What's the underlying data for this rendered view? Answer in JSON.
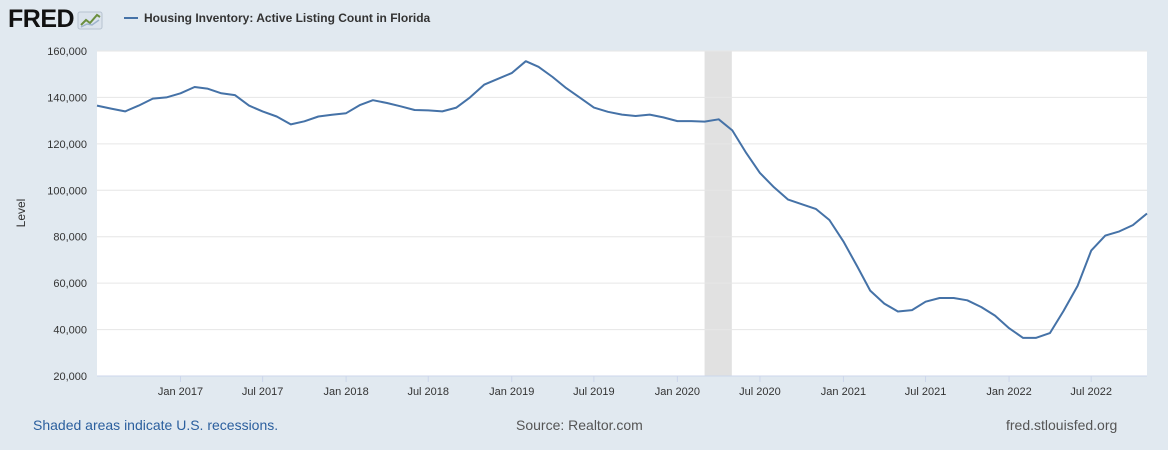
{
  "header": {
    "logo_text": "FRED",
    "logo_icon": "chart-trend-icon"
  },
  "footer": {
    "recession_note": "Shaded areas indicate U.S. recessions.",
    "source": "Source: Realtor.com",
    "site": "fred.stlouisfed.org"
  },
  "colors": {
    "series": "#4572a7",
    "recession": "#e1e1e1",
    "background": "#e1e9f0"
  },
  "chart_data": {
    "type": "line",
    "title": "",
    "xlabel": "",
    "ylabel": "Level",
    "ylim": [
      20000,
      160000
    ],
    "xlim": [
      "2016-07-01",
      "2022-11-01"
    ],
    "grid": true,
    "legend": "top-left",
    "y_ticks": [
      "20,000",
      "40,000",
      "60,000",
      "80,000",
      "100,000",
      "120,000",
      "140,000",
      "160,000"
    ],
    "x_ticks": [
      {
        "label": "Jan 2017",
        "date": "2017-01-01"
      },
      {
        "label": "Jul 2017",
        "date": "2017-07-01"
      },
      {
        "label": "Jan 2018",
        "date": "2018-01-01"
      },
      {
        "label": "Jul 2018",
        "date": "2018-07-01"
      },
      {
        "label": "Jan 2019",
        "date": "2019-01-01"
      },
      {
        "label": "Jul 2019",
        "date": "2019-07-01"
      },
      {
        "label": "Jan 2020",
        "date": "2020-01-01"
      },
      {
        "label": "Jul 2020",
        "date": "2020-07-01"
      },
      {
        "label": "Jan 2021",
        "date": "2021-01-01"
      },
      {
        "label": "Jul 2021",
        "date": "2021-07-01"
      },
      {
        "label": "Jan 2022",
        "date": "2022-01-01"
      },
      {
        "label": "Jul 2022",
        "date": "2022-07-01"
      }
    ],
    "recessions": [
      {
        "start": "2020-03-01",
        "end": "2020-04-30"
      }
    ],
    "series": [
      {
        "name": "Housing Inventory: Active Listing Count in Florida",
        "points": [
          [
            "2016-07-01",
            136500
          ],
          [
            "2016-08-01",
            135200
          ],
          [
            "2016-09-01",
            134000
          ],
          [
            "2016-10-01",
            136500
          ],
          [
            "2016-11-01",
            139500
          ],
          [
            "2016-12-01",
            140000
          ],
          [
            "2017-01-01",
            141800
          ],
          [
            "2017-02-01",
            144500
          ],
          [
            "2017-03-01",
            143800
          ],
          [
            "2017-04-01",
            141800
          ],
          [
            "2017-05-01",
            141000
          ],
          [
            "2017-06-01",
            136500
          ],
          [
            "2017-07-01",
            134000
          ],
          [
            "2017-08-01",
            131800
          ],
          [
            "2017-09-01",
            128400
          ],
          [
            "2017-10-01",
            129700
          ],
          [
            "2017-11-01",
            131800
          ],
          [
            "2017-12-01",
            132500
          ],
          [
            "2018-01-01",
            133200
          ],
          [
            "2018-02-01",
            136800
          ],
          [
            "2018-03-01",
            138800
          ],
          [
            "2018-04-01",
            137600
          ],
          [
            "2018-05-01",
            136200
          ],
          [
            "2018-06-01",
            134600
          ],
          [
            "2018-07-01",
            134400
          ],
          [
            "2018-08-01",
            134000
          ],
          [
            "2018-09-01",
            135600
          ],
          [
            "2018-10-01",
            140000
          ],
          [
            "2018-11-01",
            145500
          ],
          [
            "2018-12-01",
            148000
          ],
          [
            "2019-01-01",
            150500
          ],
          [
            "2019-02-01",
            155600
          ],
          [
            "2019-03-01",
            153200
          ],
          [
            "2019-04-01",
            148800
          ],
          [
            "2019-05-01",
            144000
          ],
          [
            "2019-06-01",
            139800
          ],
          [
            "2019-07-01",
            135600
          ],
          [
            "2019-08-01",
            133800
          ],
          [
            "2019-09-01",
            132600
          ],
          [
            "2019-10-01",
            132000
          ],
          [
            "2019-11-01",
            132600
          ],
          [
            "2019-12-01",
            131400
          ],
          [
            "2020-01-01",
            129800
          ],
          [
            "2020-02-01",
            129800
          ],
          [
            "2020-03-01",
            129600
          ],
          [
            "2020-04-01",
            130600
          ],
          [
            "2020-05-01",
            125800
          ],
          [
            "2020-06-01",
            116000
          ],
          [
            "2020-07-01",
            107500
          ],
          [
            "2020-08-01",
            101300
          ],
          [
            "2020-09-01",
            96000
          ],
          [
            "2020-10-01",
            94000
          ],
          [
            "2020-11-01",
            92000
          ],
          [
            "2020-12-01",
            87200
          ],
          [
            "2021-01-01",
            78000
          ],
          [
            "2021-02-01",
            67000
          ],
          [
            "2021-03-01",
            56800
          ],
          [
            "2021-04-01",
            51200
          ],
          [
            "2021-05-01",
            47800
          ],
          [
            "2021-06-01",
            48400
          ],
          [
            "2021-07-01",
            52000
          ],
          [
            "2021-08-01",
            53600
          ],
          [
            "2021-09-01",
            53600
          ],
          [
            "2021-10-01",
            52600
          ],
          [
            "2021-11-01",
            49700
          ],
          [
            "2021-12-01",
            46000
          ],
          [
            "2022-01-01",
            40600
          ],
          [
            "2022-02-01",
            36400
          ],
          [
            "2022-03-01",
            36400
          ],
          [
            "2022-04-01",
            38500
          ],
          [
            "2022-05-01",
            48000
          ],
          [
            "2022-06-01",
            58800
          ],
          [
            "2022-07-01",
            74000
          ],
          [
            "2022-08-01",
            80500
          ],
          [
            "2022-09-01",
            82300
          ],
          [
            "2022-10-01",
            85000
          ],
          [
            "2022-11-01",
            90000
          ]
        ]
      }
    ]
  }
}
